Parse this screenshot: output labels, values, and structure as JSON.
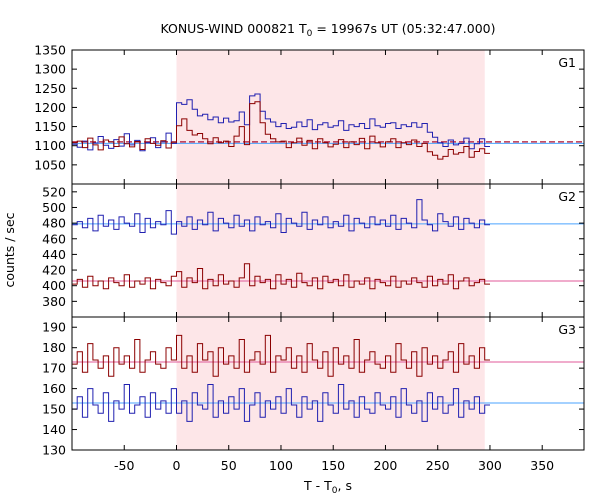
{
  "chart_data": {
    "type": "line",
    "title": "KONUS-WIND 000821 T0 = 19967s UT (05:32:47.000)",
    "title_parts": {
      "prefix": "KONUS-WIND 000821 T",
      "subscript": "0",
      "suffix": " = 19967s UT (05:32:47.000)"
    },
    "xlabel": "T - T0, s",
    "xlabel_parts": {
      "prefix": "T - T",
      "subscript": "0",
      "suffix": ", s"
    },
    "ylabel": "counts / sec",
    "xlim": [
      -100,
      390
    ],
    "xticks": [
      -50,
      0,
      50,
      100,
      150,
      200,
      250,
      300,
      350
    ],
    "highlight_interval": [
      0,
      295
    ],
    "highlight_color": "#fde6e8",
    "colors": {
      "blue": "#2020b0",
      "red": "#8b0000",
      "blue_bg": "#4aa3ff",
      "red_bg": "#e05a9a",
      "red_dashed": "#b01030"
    },
    "panels": [
      {
        "label": "G1",
        "ylim": [
          1000,
          1350
        ],
        "yticks": [
          1000,
          1050,
          1100,
          1150,
          1200,
          1250,
          1300,
          1350
        ],
        "series": [
          {
            "color_key": "blue",
            "bin": 5,
            "t0": -100,
            "values": [
              1104,
              1096,
              1112,
              1089,
              1107,
              1124,
              1101,
              1093,
              1116,
              1099,
              1131,
              1102,
              1114,
              1087,
              1108,
              1121,
              1095,
              1110,
              1133,
              1106,
              1212,
              1208,
              1220,
              1195,
              1178,
              1182,
              1168,
              1175,
              1160,
              1172,
              1162,
              1165,
              1188,
              1155,
              1230,
              1235,
              1190,
              1170,
              1162,
              1150,
              1158,
              1145,
              1148,
              1162,
              1150,
              1168,
              1142,
              1155,
              1160,
              1148,
              1152,
              1165,
              1140,
              1155,
              1150,
              1158,
              1145,
              1170,
              1152,
              1148,
              1158,
              1160,
              1145,
              1155,
              1150,
              1160,
              1148,
              1158,
              1135,
              1122,
              1108,
              1098,
              1115,
              1102,
              1106,
              1120,
              1092,
              1105,
              1118,
              1098
            ]
          },
          {
            "color_key": "red",
            "bin": 5,
            "t0": -100,
            "values": [
              1108,
              1112,
              1095,
              1120,
              1102,
              1089,
              1115,
              1110,
              1098,
              1123,
              1105,
              1097,
              1111,
              1090,
              1118,
              1106,
              1101,
              1113,
              1094,
              1109,
              1152,
              1170,
              1140,
              1128,
              1132,
              1118,
              1105,
              1121,
              1108,
              1112,
              1098,
              1125,
              1150,
              1103,
              1210,
              1215,
              1160,
              1130,
              1118,
              1110,
              1112,
              1095,
              1108,
              1120,
              1101,
              1114,
              1092,
              1118,
              1108,
              1097,
              1104,
              1116,
              1095,
              1110,
              1103,
              1119,
              1092,
              1125,
              1108,
              1097,
              1110,
              1118,
              1095,
              1108,
              1103,
              1115,
              1098,
              1106,
              1084,
              1075,
              1065,
              1072,
              1090,
              1078,
              1082,
              1098,
              1070,
              1085,
              1092,
              1080
            ]
          }
        ],
        "background": [
          {
            "color_key": "blue_bg",
            "t0": -100,
            "t1": 390,
            "value": 1106,
            "dash": false
          },
          {
            "color_key": "red_dashed",
            "t0": -100,
            "t1": 390,
            "value": 1110,
            "dash": true
          }
        ]
      },
      {
        "label": "G2",
        "ylim": [
          360,
          530
        ],
        "yticks": [
          360,
          380,
          400,
          420,
          440,
          460,
          480,
          500,
          520
        ],
        "series": [
          {
            "color_key": "blue",
            "bin": 5,
            "t0": -100,
            "values": [
              478,
              482,
              474,
              486,
              470,
              490,
              476,
              484,
              472,
              488,
              480,
              476,
              492,
              468,
              486,
              474,
              482,
              478,
              496,
              466,
              482,
              476,
              488,
              472,
              484,
              478,
              494,
              470,
              486,
              480,
              474,
              490,
              476,
              484,
              470,
              488,
              478,
              482,
              474,
              492,
              468,
              486,
              480,
              476,
              494,
              472,
              484,
              478,
              488,
              474,
              482,
              476,
              490,
              470,
              486,
              480,
              474,
              488,
              478,
              484,
              476,
              490,
              472,
              486,
              480,
              474,
              510,
              484,
              478,
              470,
              492,
              482,
              476,
              488,
              472,
              486,
              480,
              474,
              484,
              478
            ]
          },
          {
            "color_key": "red",
            "bin": 5,
            "t0": -100,
            "values": [
              402,
              408,
              398,
              412,
              400,
              406,
              396,
              410,
              404,
              400,
              414,
              398,
              406,
              402,
              410,
              396,
              408,
              404,
              400,
              412,
              418,
              398,
              410,
              404,
              422,
              396,
              408,
              400,
              414,
              402,
              406,
              398,
              410,
              428,
              400,
              412,
              404,
              408,
              396,
              414,
              402,
              408,
              398,
              416,
              404,
              400,
              410,
              396,
              412,
              404,
              408,
              400,
              414,
              398,
              406,
              402,
              410,
              396,
              408,
              404,
              400,
              412,
              398,
              406,
              402,
              410,
              404,
              398,
              412,
              400,
              408,
              402,
              414,
              396,
              406,
              410,
              400,
              404,
              408,
              402
            ]
          }
        ],
        "background": [
          {
            "color_key": "blue_bg",
            "t0": -100,
            "t1": 390,
            "value": 479,
            "dash": false
          },
          {
            "color_key": "red_bg",
            "t0": -100,
            "t1": 390,
            "value": 406,
            "dash": false
          }
        ]
      },
      {
        "label": "G3",
        "ylim": [
          130,
          195
        ],
        "yticks": [
          130,
          140,
          150,
          160,
          170,
          180,
          190
        ],
        "series": [
          {
            "color_key": "red",
            "bin": 5,
            "t0": -100,
            "values": [
              172,
              178,
              168,
              182,
              174,
              170,
              176,
              166,
              180,
              172,
              176,
              170,
              184,
              168,
              174,
              178,
              172,
              170,
              180,
              174,
              186,
              170,
              176,
              168,
              182,
              174,
              178,
              166,
              180,
              172,
              176,
              170,
              184,
              168,
              174,
              178,
              172,
              186,
              168,
              176,
              174,
              180,
              170,
              176,
              168,
              182,
              174,
              170,
              178,
              166,
              180,
              172,
              176,
              170,
              184,
              168,
              174,
              178,
              172,
              170,
              176,
              168,
              182,
              174,
              170,
              178,
              166,
              180,
              172,
              176,
              170,
              174,
              178,
              168,
              182,
              172,
              176,
              170,
              180,
              174
            ]
          },
          {
            "color_key": "blue",
            "bin": 5,
            "t0": -100,
            "values": [
              150,
              156,
              146,
              160,
              152,
              148,
              158,
              144,
              154,
              150,
              162,
              148,
              152,
              156,
              146,
              158,
              150,
              154,
              148,
              160,
              148,
              154,
              144,
              158,
              152,
              150,
              162,
              146,
              154,
              148,
              156,
              150,
              160,
              144,
              152,
              158,
              146,
              154,
              150,
              156,
              148,
              160,
              152,
              146,
              156,
              150,
              154,
              144,
              158,
              152,
              148,
              162,
              150,
              154,
              146,
              156,
              150,
              148,
              158,
              152,
              150,
              156,
              146,
              160,
              152,
              148,
              154,
              144,
              158,
              150,
              156,
              148,
              152,
              160,
              146,
              154,
              150,
              156,
              148,
              152
            ]
          }
        ],
        "background": [
          {
            "color_key": "red_bg",
            "t0": -100,
            "t1": 390,
            "value": 173,
            "dash": false
          },
          {
            "color_key": "blue_bg",
            "t0": -100,
            "t1": 390,
            "value": 153,
            "dash": false
          }
        ]
      }
    ],
    "legend": "none",
    "grid": false
  }
}
